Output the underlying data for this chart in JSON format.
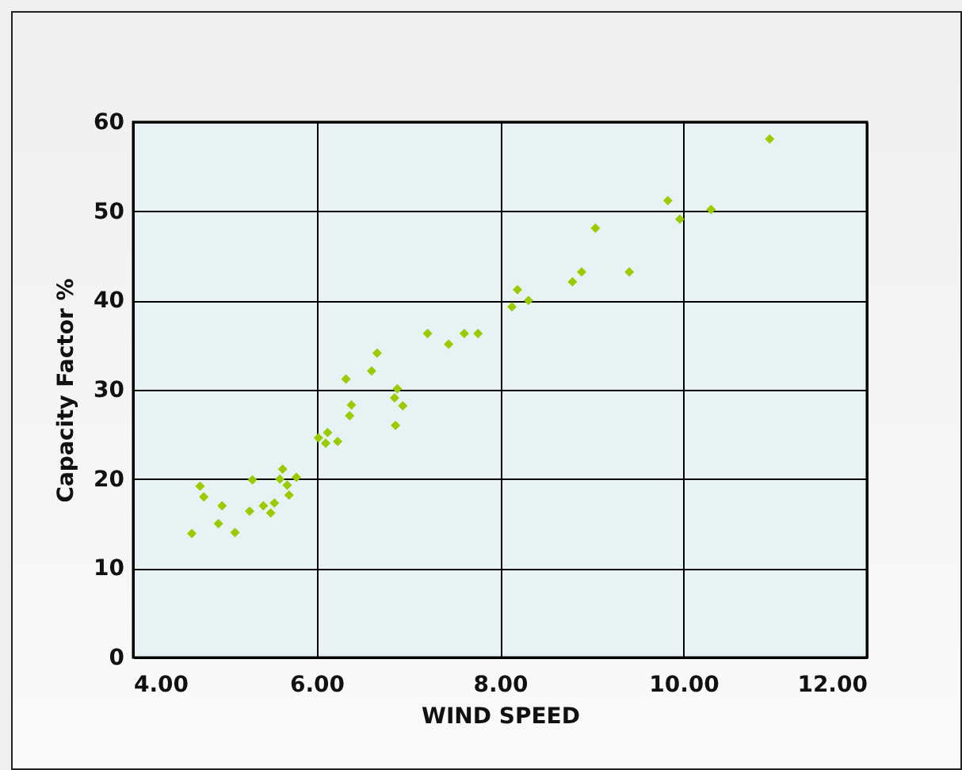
{
  "chart_data": {
    "type": "scatter",
    "xlabel": "WIND SPEED",
    "ylabel": "Capacity Factor %",
    "marker": "diamond",
    "grid": true,
    "x": [
      4.64,
      4.73,
      4.77,
      4.93,
      4.97,
      5.11,
      5.27,
      5.3,
      5.42,
      5.5,
      5.54,
      5.6,
      5.63,
      5.68,
      5.7,
      5.78,
      6.02,
      6.1,
      6.12,
      6.23,
      6.32,
      6.36,
      6.38,
      6.6,
      6.66,
      6.85,
      6.88,
      6.86,
      6.94,
      7.21,
      7.44,
      7.61,
      7.76,
      8.13,
      8.19,
      8.31,
      8.79,
      8.89,
      9.04,
      9.41,
      9.83,
      9.96,
      10.3,
      10.94
    ],
    "series": [
      {
        "color": "#99cc00",
        "values": [
          13.9,
          19.2,
          18.0,
          15.0,
          17.0,
          14.0,
          16.4,
          19.9,
          17.0,
          16.2,
          17.3,
          20.0,
          21.1,
          19.3,
          18.2,
          20.2,
          24.6,
          24.0,
          25.2,
          24.2,
          31.2,
          27.1,
          28.3,
          32.1,
          34.1,
          29.1,
          30.1,
          26.0,
          28.2,
          36.3,
          35.1,
          36.3,
          36.3,
          39.3,
          41.2,
          40.0,
          42.1,
          43.2,
          48.1,
          43.2,
          51.2,
          49.1,
          50.2,
          58.1
        ]
      }
    ],
    "xlim": [
      4,
      12
    ],
    "xticks": [
      {
        "value": 4,
        "label": "4.00"
      },
      {
        "value": 6,
        "label": "6.00"
      },
      {
        "value": 8,
        "label": "8.00"
      },
      {
        "value": 10,
        "label": "10.00"
      },
      {
        "value": 12,
        "label": "12.00"
      }
    ],
    "ylim": [
      0,
      60
    ],
    "yticks": [
      0,
      10,
      20,
      30,
      40,
      50,
      60
    ]
  }
}
